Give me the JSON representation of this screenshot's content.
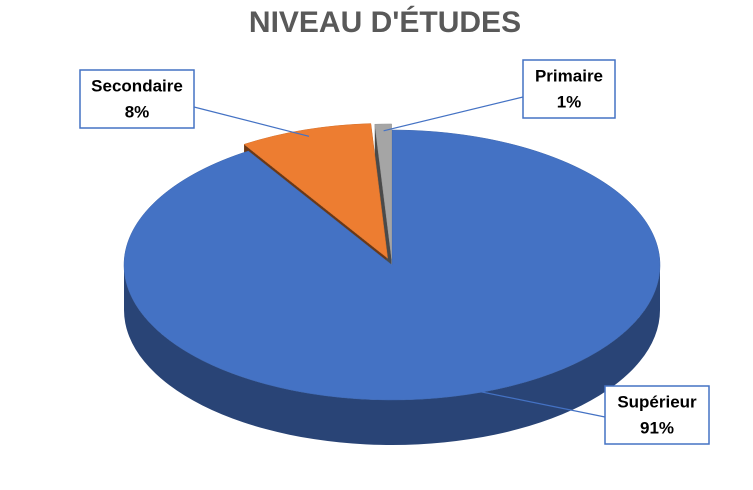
{
  "chart_data": {
    "type": "pie",
    "title": "NIVEAU D'ÉTUDES",
    "categories": [
      "Supérieur",
      "Secondaire",
      "Primaire"
    ],
    "values": [
      91,
      8,
      1
    ],
    "value_labels": [
      "91%",
      "8%",
      "1%"
    ],
    "colors": [
      "#4472c4",
      "#ed7d31",
      "#a5a5a5"
    ]
  }
}
